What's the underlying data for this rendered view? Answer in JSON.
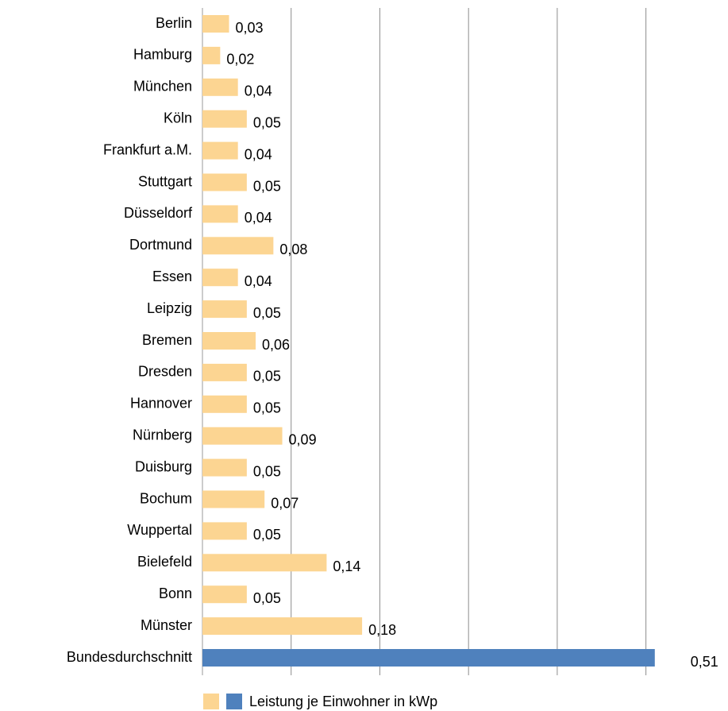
{
  "chart_data": {
    "type": "hbar",
    "categories": [
      "Berlin",
      "Hamburg",
      "München",
      "Köln",
      "Frankfurt a.M.",
      "Stuttgart",
      "Düsseldorf",
      "Dortmund",
      "Essen",
      "Leipzig",
      "Bremen",
      "Dresden",
      "Hannover",
      "Nürnberg",
      "Duisburg",
      "Bochum",
      "Wuppertal",
      "Bielefeld",
      "Bonn",
      "Münster",
      "Bundesdurchschnitt"
    ],
    "series": [
      {
        "name": "Leistung je Einwohner in kWp",
        "values": [
          0.03,
          0.02,
          0.04,
          0.05,
          0.04,
          0.05,
          0.04,
          0.08,
          0.04,
          0.05,
          0.06,
          0.05,
          0.05,
          0.09,
          0.05,
          0.07,
          0.05,
          0.14,
          0.05,
          0.18,
          0.51
        ],
        "value_labels": [
          "0,03",
          "0,02",
          "0,04",
          "0,05",
          "0,04",
          "0,05",
          "0,04",
          "0,08",
          "0,04",
          "0,05",
          "0,06",
          "0,05",
          "0,05",
          "0,09",
          "0,05",
          "0,07",
          "0,05",
          "0,14",
          "0,05",
          "0,18",
          "0,51"
        ],
        "colors": [
          "#fcd592",
          "#fcd592",
          "#fcd592",
          "#fcd592",
          "#fcd592",
          "#fcd592",
          "#fcd592",
          "#fcd592",
          "#fcd592",
          "#fcd592",
          "#fcd592",
          "#fcd592",
          "#fcd592",
          "#fcd592",
          "#fcd592",
          "#fcd592",
          "#fcd592",
          "#fcd592",
          "#fcd592",
          "#fcd592",
          "#4f81bd"
        ]
      }
    ],
    "xlim": [
      0,
      0.58
    ],
    "xticks": [
      0,
      0.1,
      0.2,
      0.3,
      0.4,
      0.5
    ],
    "grid": true,
    "legend": "bottom"
  }
}
